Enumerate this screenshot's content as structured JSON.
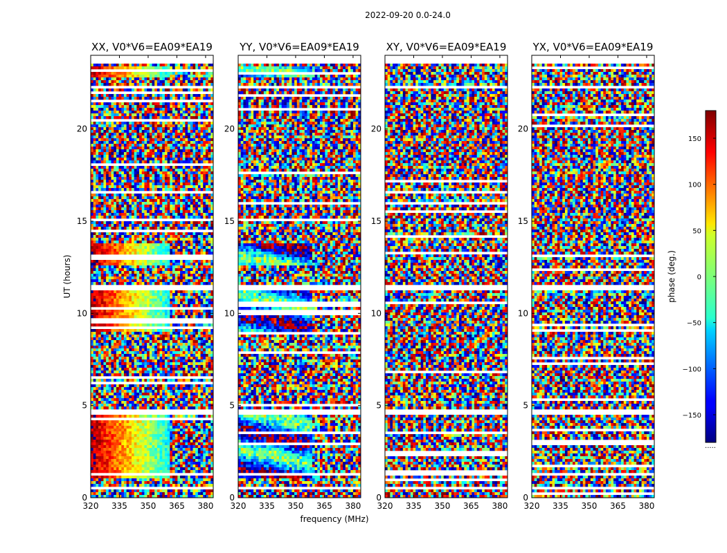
{
  "figure_title": "2022-09-20 0.0-24.0",
  "chart_data": {
    "type": "heatmap",
    "title": "2022-09-20 0.0-24.0",
    "xlabel": "frequency (MHz)",
    "ylabel": "UT (hours)",
    "xlim": [
      320,
      384
    ],
    "ylim": [
      0,
      24
    ],
    "xticks": [
      320,
      335,
      350,
      365,
      380
    ],
    "yticks": [
      0,
      5,
      10,
      15,
      20
    ],
    "colormap": "jet",
    "colorbar": {
      "label": "phase (deg.)",
      "range": [
        -180,
        180
      ],
      "ticks": [
        150,
        100,
        50,
        0,
        -50,
        -100,
        -150
      ],
      "tick_labels": [
        "150",
        "100",
        "50",
        "0",
        "−50",
        "−100",
        "−150"
      ],
      "bottom_label": "....."
    },
    "panels": [
      {
        "name": "XX",
        "title": "XX, V0*V6=EA09*EA19"
      },
      {
        "name": "YY",
        "title": "YY, V0*V6=EA09*EA19"
      },
      {
        "name": "XY",
        "title": "XY, V0*V6=EA09*EA19"
      },
      {
        "name": "YX",
        "title": "YX, V0*V6=EA09*EA19"
      }
    ],
    "flagged_bands_ut_hours": [
      [
        0.45,
        0.55
      ],
      [
        1.25,
        1.4
      ],
      [
        4.55,
        4.75
      ],
      [
        11.3,
        11.55
      ],
      [
        14.05,
        14.15
      ],
      [
        22.15,
        22.3
      ],
      [
        23.5,
        24.0
      ]
    ],
    "visual_note": "phase of visibilities vs frequency and UT; interference fringes with flagged (blank) time rows"
  }
}
